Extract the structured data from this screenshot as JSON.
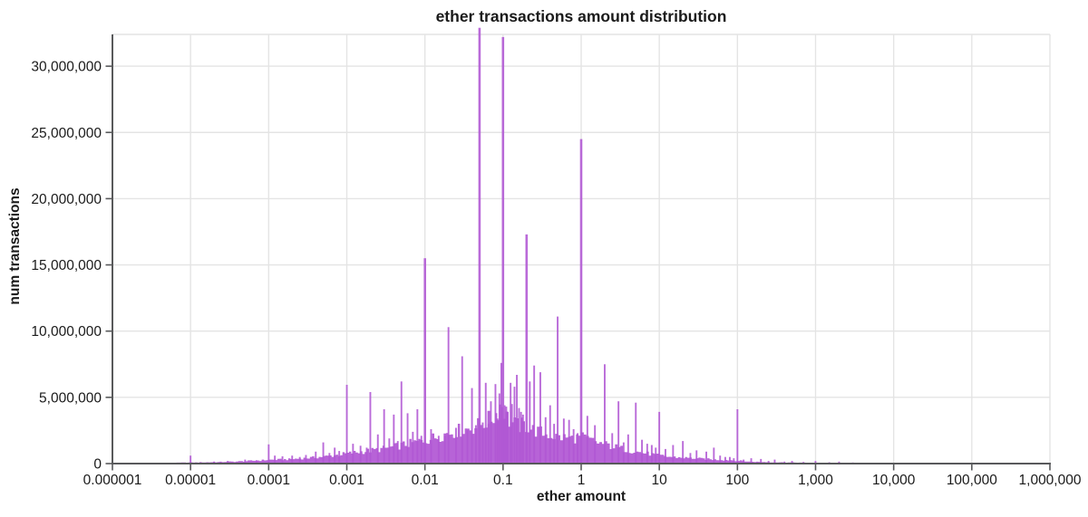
{
  "title": "ether transactions amount distribution",
  "chart_data": {
    "type": "bar",
    "title": "ether transactions amount distribution",
    "xlabel": "ether amount",
    "ylabel": "num transactions",
    "x_scale": "log",
    "xlim": [
      1e-06,
      1000000
    ],
    "ylim": [
      0,
      32400000
    ],
    "grid": true,
    "legend": "none",
    "bar_color": "#b156d4",
    "grid_color": "#e4e4e4",
    "axis_color": "#58595b",
    "text_color": "#1a1a1a",
    "x_ticks": [
      {
        "value": 1e-06,
        "label": "0.000001"
      },
      {
        "value": 1e-05,
        "label": "0.00001"
      },
      {
        "value": 0.0001,
        "label": "0.0001"
      },
      {
        "value": 0.001,
        "label": "0.001"
      },
      {
        "value": 0.01,
        "label": "0.01"
      },
      {
        "value": 0.1,
        "label": "0.1"
      },
      {
        "value": 1,
        "label": "1"
      },
      {
        "value": 10,
        "label": "10"
      },
      {
        "value": 100,
        "label": "100"
      },
      {
        "value": 1000,
        "label": "1,000"
      },
      {
        "value": 10000,
        "label": "10,000"
      },
      {
        "value": 100000,
        "label": "100,000"
      },
      {
        "value": 1000000,
        "label": "1,000,000"
      }
    ],
    "y_ticks": [
      {
        "value": 0,
        "label": "0"
      },
      {
        "value": 5000000,
        "label": "5,000,000"
      },
      {
        "value": 10000000,
        "label": "10,000,000"
      },
      {
        "value": 15000000,
        "label": "15,000,000"
      },
      {
        "value": 20000000,
        "label": "20,000,000"
      },
      {
        "value": 25000000,
        "label": "25,000,000"
      },
      {
        "value": 30000000,
        "label": "30,000,000"
      }
    ],
    "spikes": [
      [
        3e-06,
        50000
      ],
      [
        5e-06,
        70000
      ],
      [
        1e-05,
        600000
      ],
      [
        2e-05,
        150000
      ],
      [
        3e-05,
        200000
      ],
      [
        5e-05,
        300000
      ],
      [
        7e-05,
        250000
      ],
      [
        0.0001,
        1450000
      ],
      [
        0.00012,
        600000
      ],
      [
        0.00015,
        550000
      ],
      [
        0.0002,
        600000
      ],
      [
        0.00025,
        500000
      ],
      [
        0.0003,
        650000
      ],
      [
        0.0004,
        900000
      ],
      [
        0.0005,
        1600000
      ],
      [
        0.0006,
        800000
      ],
      [
        0.0007,
        1200000
      ],
      [
        0.0008,
        950000
      ],
      [
        0.001,
        5950000
      ],
      [
        0.0012,
        1500000
      ],
      [
        0.0015,
        1350000
      ],
      [
        0.0018,
        1200000
      ],
      [
        0.002,
        5400000
      ],
      [
        0.0025,
        2200000
      ],
      [
        0.003,
        4100000
      ],
      [
        0.0035,
        1900000
      ],
      [
        0.004,
        3700000
      ],
      [
        0.0045,
        1700000
      ],
      [
        0.005,
        6200000
      ],
      [
        0.006,
        3800000
      ],
      [
        0.007,
        2400000
      ],
      [
        0.008,
        4100000
      ],
      [
        0.009,
        2100000
      ],
      [
        0.01,
        15500000
      ],
      [
        0.012,
        2600000
      ],
      [
        0.015,
        2100000
      ],
      [
        0.018,
        2100000
      ],
      [
        0.02,
        10300000
      ],
      [
        0.025,
        2700000
      ],
      [
        0.03,
        8100000
      ],
      [
        0.035,
        2500000
      ],
      [
        0.04,
        5700000
      ],
      [
        0.045,
        2900000
      ],
      [
        0.05,
        32900000
      ],
      [
        0.055,
        3100000
      ],
      [
        0.06,
        6100000
      ],
      [
        0.065,
        3000000
      ],
      [
        0.07,
        4700000
      ],
      [
        0.08,
        6000000
      ],
      [
        0.085,
        3400000
      ],
      [
        0.09,
        5300000
      ],
      [
        0.095,
        7600000
      ],
      [
        0.1,
        32200000
      ],
      [
        0.105,
        4400000
      ],
      [
        0.11,
        4300000
      ],
      [
        0.115,
        3900000
      ],
      [
        0.125,
        6100000
      ],
      [
        0.13,
        4500000
      ],
      [
        0.14,
        5800000
      ],
      [
        0.15,
        6700000
      ],
      [
        0.16,
        4200000
      ],
      [
        0.17,
        3900000
      ],
      [
        0.18,
        3700000
      ],
      [
        0.2,
        17300000
      ],
      [
        0.22,
        6200000
      ],
      [
        0.25,
        7400000
      ],
      [
        0.3,
        6900000
      ],
      [
        0.35,
        3500000
      ],
      [
        0.4,
        4400000
      ],
      [
        0.45,
        3000000
      ],
      [
        0.5,
        11100000
      ],
      [
        0.6,
        3400000
      ],
      [
        0.7,
        3300000
      ],
      [
        0.8,
        2600000
      ],
      [
        0.9,
        2300000
      ],
      [
        1,
        24500000
      ],
      [
        1.2,
        3600000
      ],
      [
        1.5,
        2900000
      ],
      [
        2,
        7500000
      ],
      [
        2.5,
        2300000
      ],
      [
        3,
        4700000
      ],
      [
        3.5,
        1600000
      ],
      [
        4,
        2200000
      ],
      [
        5,
        4600000
      ],
      [
        6,
        1800000
      ],
      [
        7,
        1500000
      ],
      [
        8,
        1400000
      ],
      [
        9,
        1200000
      ],
      [
        10,
        3900000
      ],
      [
        12,
        1100000
      ],
      [
        15,
        1400000
      ],
      [
        20,
        1700000
      ],
      [
        25,
        800000
      ],
      [
        30,
        1000000
      ],
      [
        40,
        900000
      ],
      [
        50,
        1200000
      ],
      [
        60,
        600000
      ],
      [
        70,
        500000
      ],
      [
        80,
        500000
      ],
      [
        90,
        400000
      ],
      [
        100,
        4100000
      ],
      [
        120,
        300000
      ],
      [
        150,
        400000
      ],
      [
        200,
        350000
      ],
      [
        250,
        200000
      ],
      [
        300,
        300000
      ],
      [
        400,
        150000
      ],
      [
        500,
        200000
      ],
      [
        700,
        120000
      ],
      [
        1000,
        200000
      ],
      [
        1500,
        100000
      ],
      [
        2000,
        150000
      ],
      [
        3000,
        80000
      ]
    ],
    "envelope": [
      [
        -5.7,
        20000
      ],
      [
        -5.3,
        50000
      ],
      [
        -5.0,
        80000
      ],
      [
        -4.6,
        120000
      ],
      [
        -4.3,
        180000
      ],
      [
        -4.0,
        280000
      ],
      [
        -3.75,
        320000
      ],
      [
        -3.5,
        420000
      ],
      [
        -3.25,
        550000
      ],
      [
        -3.0,
        750000
      ],
      [
        -2.8,
        900000
      ],
      [
        -2.6,
        1050000
      ],
      [
        -2.4,
        1250000
      ],
      [
        -2.2,
        1500000
      ],
      [
        -2.0,
        1750000
      ],
      [
        -1.85,
        2000000
      ],
      [
        -1.7,
        2300000
      ],
      [
        -1.55,
        2500000
      ],
      [
        -1.4,
        2700000
      ],
      [
        -1.3,
        2900000
      ],
      [
        -1.2,
        3200000
      ],
      [
        -1.1,
        3600000
      ],
      [
        -1.05,
        4200000
      ],
      [
        -1.02,
        4600000
      ],
      [
        -1.0,
        4400000
      ],
      [
        -0.97,
        3600000
      ],
      [
        -0.9,
        3100000
      ],
      [
        -0.8,
        2800000
      ],
      [
        -0.72,
        2900000
      ],
      [
        -0.6,
        2500000
      ],
      [
        -0.5,
        2300000
      ],
      [
        -0.4,
        2150000
      ],
      [
        -0.3,
        2000000
      ],
      [
        -0.2,
        1950000
      ],
      [
        -0.1,
        1900000
      ],
      [
        0.0,
        2000000
      ],
      [
        0.1,
        1800000
      ],
      [
        0.2,
        1600000
      ],
      [
        0.3,
        1450000
      ],
      [
        0.4,
        1300000
      ],
      [
        0.5,
        1150000
      ],
      [
        0.6,
        1000000
      ],
      [
        0.7,
        900000
      ],
      [
        0.8,
        800000
      ],
      [
        0.9,
        700000
      ],
      [
        1.0,
        600000
      ],
      [
        1.15,
        500000
      ],
      [
        1.3,
        450000
      ],
      [
        1.5,
        380000
      ],
      [
        1.7,
        300000
      ],
      [
        1.9,
        260000
      ],
      [
        2.0,
        220000
      ],
      [
        2.15,
        150000
      ],
      [
        2.3,
        120000
      ],
      [
        2.5,
        100000
      ],
      [
        2.7,
        80000
      ],
      [
        2.9,
        60000
      ],
      [
        3.1,
        50000
      ],
      [
        3.3,
        40000
      ],
      [
        3.5,
        30000
      ],
      [
        3.7,
        20000
      ],
      [
        3.9,
        10000
      ],
      [
        4.0,
        0
      ]
    ]
  }
}
